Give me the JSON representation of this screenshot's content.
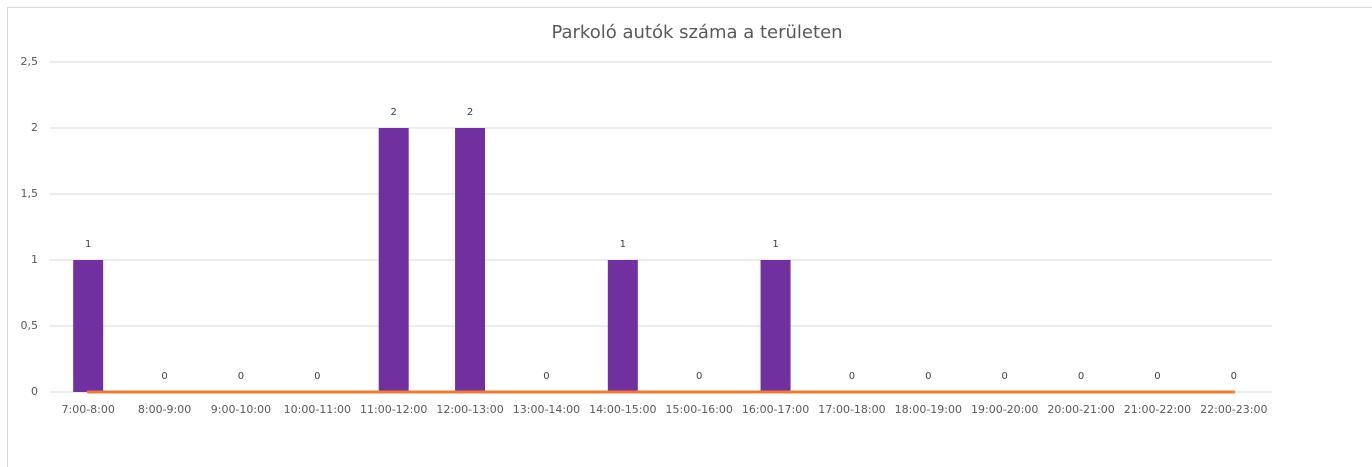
{
  "chart_data": {
    "type": "bar",
    "title": "Parkoló autók száma a területen",
    "categories": [
      "7:00-8:00",
      "8:00-9:00",
      "9:00-10:00",
      "10:00-11:00",
      "11:00-12:00",
      "12:00-13:00",
      "13:00-14:00",
      "14:00-15:00",
      "15:00-16:00",
      "16:00-17:00",
      "17:00-18:00",
      "18:00-19:00",
      "19:00-20:00",
      "20:00-21:00",
      "21:00-22:00",
      "22:00-23:00"
    ],
    "series": [
      {
        "type": "bar",
        "color": "#7030a0",
        "values": [
          1,
          0,
          0,
          0,
          2,
          2,
          0,
          1,
          0,
          1,
          0,
          0,
          0,
          0,
          0,
          0
        ]
      },
      {
        "type": "line",
        "color": "#ed7d31",
        "values": [
          0,
          0,
          0,
          0,
          0,
          0,
          0,
          0,
          0,
          0,
          0,
          0,
          0,
          0,
          0,
          0
        ]
      }
    ],
    "ylim": [
      0,
      2.5
    ],
    "yticks": [
      0,
      {
        "value": 0.5,
        "label": "0,5"
      },
      1,
      {
        "value": 1.5,
        "label": "1,5"
      },
      2,
      {
        "value": 2.5,
        "label": "2,5"
      }
    ],
    "grid": true
  }
}
